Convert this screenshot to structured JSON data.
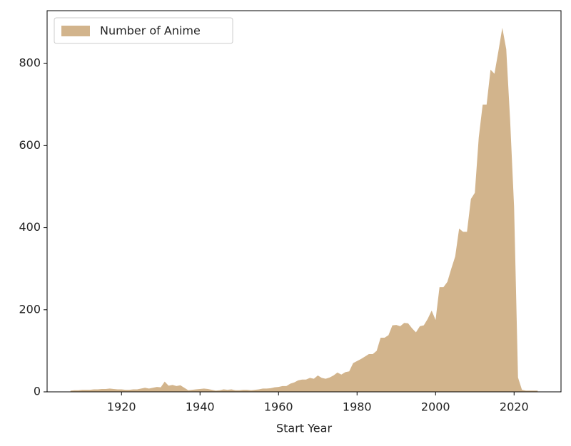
{
  "chart_data": {
    "type": "area",
    "xlabel": "Start Year",
    "legend": "upper left",
    "x": [
      1907,
      1908,
      1909,
      1910,
      1911,
      1912,
      1913,
      1914,
      1915,
      1916,
      1917,
      1918,
      1919,
      1920,
      1921,
      1922,
      1923,
      1924,
      1925,
      1926,
      1927,
      1928,
      1929,
      1930,
      1931,
      1932,
      1933,
      1934,
      1935,
      1936,
      1937,
      1938,
      1939,
      1940,
      1941,
      1942,
      1943,
      1944,
      1945,
      1946,
      1947,
      1948,
      1949,
      1950,
      1951,
      1952,
      1953,
      1954,
      1955,
      1956,
      1957,
      1958,
      1959,
      1960,
      1961,
      1962,
      1963,
      1964,
      1965,
      1966,
      1967,
      1968,
      1969,
      1970,
      1971,
      1972,
      1973,
      1974,
      1975,
      1976,
      1977,
      1978,
      1979,
      1980,
      1981,
      1982,
      1983,
      1984,
      1985,
      1986,
      1987,
      1988,
      1989,
      1990,
      1991,
      1992,
      1993,
      1994,
      1995,
      1996,
      1997,
      1998,
      1999,
      2000,
      2001,
      2002,
      2003,
      2004,
      2005,
      2006,
      2007,
      2008,
      2009,
      2010,
      2011,
      2012,
      2013,
      2014,
      2015,
      2016,
      2017,
      2018,
      2019,
      2020,
      2021,
      2022,
      2023,
      2024,
      2025,
      2026
    ],
    "series": [
      {
        "name": "Number of Anime",
        "color": "#d2b48c",
        "values": [
          3,
          4,
          4,
          5,
          5,
          5,
          6,
          6,
          7,
          7,
          8,
          7,
          6,
          6,
          5,
          5,
          6,
          6,
          8,
          10,
          8,
          10,
          12,
          11,
          25,
          15,
          17,
          14,
          16,
          10,
          4,
          5,
          6,
          7,
          8,
          7,
          5,
          3,
          4,
          6,
          5,
          6,
          4,
          4,
          5,
          5,
          4,
          5,
          6,
          8,
          8,
          9,
          11,
          12,
          14,
          14,
          20,
          23,
          28,
          30,
          30,
          34,
          32,
          40,
          34,
          32,
          35,
          40,
          47,
          42,
          48,
          50,
          70,
          75,
          80,
          86,
          92,
          92,
          100,
          132,
          132,
          138,
          162,
          163,
          160,
          168,
          167,
          155,
          145,
          160,
          162,
          178,
          198,
          175,
          255,
          255,
          268,
          300,
          330,
          398,
          390,
          390,
          470,
          485,
          620,
          700,
          700,
          785,
          775,
          830,
          887,
          835,
          660,
          450,
          35,
          5,
          3,
          3,
          3,
          3
        ]
      }
    ],
    "xlim": [
      1901.05,
      2031.95
    ],
    "xticks": [
      1920,
      1940,
      1960,
      1980,
      2000,
      2020
    ],
    "ylim": [
      0,
      928.7
    ],
    "yticks": [
      0,
      200,
      400,
      600,
      800
    ]
  }
}
